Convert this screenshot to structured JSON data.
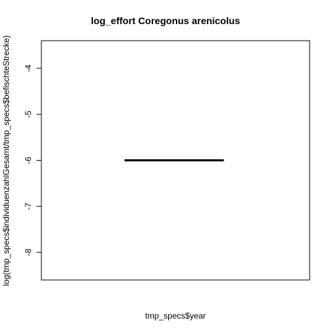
{
  "chart_data": {
    "type": "line",
    "title": "log_effort Coregonus arenicolus",
    "xlabel": "tmp_specs$year",
    "ylabel": "log(tmp_specs$individuenzahlGesamt/tmp_specs$befischteStrecke)",
    "ylim": [
      -8.6,
      -3.4
    ],
    "y_ticks": [
      -4,
      -5,
      -6,
      -7,
      -8
    ],
    "y_tick_labels": [
      "-4",
      "-5",
      "-6",
      "-7",
      "-8"
    ],
    "xlim": [
      0,
      1
    ],
    "series": [
      {
        "points": [
          {
            "x": 0.31,
            "y": -6
          },
          {
            "x": 0.68,
            "y": -6
          }
        ]
      }
    ],
    "grid": false,
    "legend": "none"
  }
}
